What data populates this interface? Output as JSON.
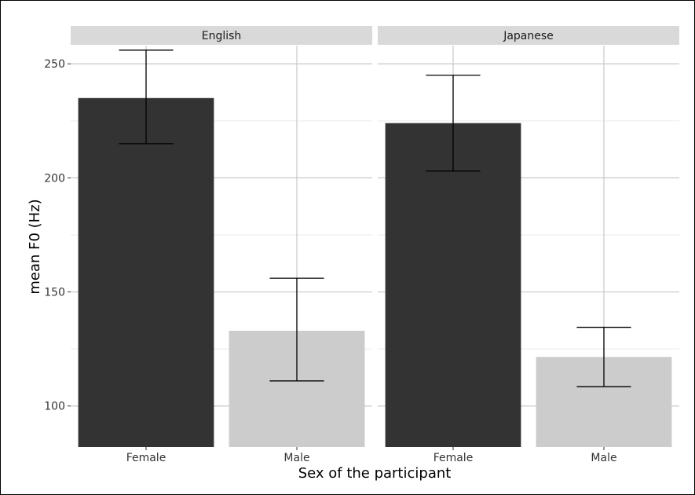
{
  "chart_data": {
    "type": "bar",
    "facet_label": "",
    "xlabel": "Sex of the participant",
    "ylabel": "mean F0 (Hz)",
    "ylim": [
      82,
      258
    ],
    "yticks": [
      100,
      150,
      200,
      250
    ],
    "categories": [
      "Female",
      "Male"
    ],
    "colors": {
      "Female": "#333333",
      "Male": "#cccccc"
    },
    "grid": true,
    "facets": [
      {
        "name": "English",
        "values": [
          235,
          133
        ],
        "error_low": [
          215,
          111
        ],
        "error_high": [
          256,
          156
        ]
      },
      {
        "name": "Japanese",
        "values": [
          224,
          121.5
        ],
        "error_low": [
          203,
          108.5
        ],
        "error_high": [
          245,
          134.5
        ]
      }
    ]
  }
}
